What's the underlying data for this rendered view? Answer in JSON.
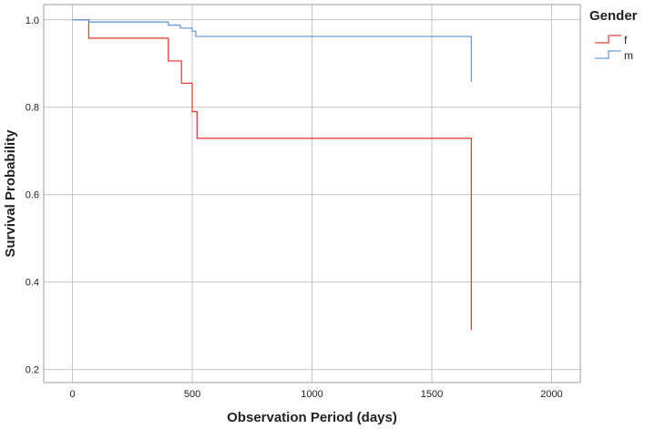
{
  "chart_data": {
    "type": "line",
    "title": "",
    "xlabel": "Observation Period (days)",
    "ylabel": "Survival Probability",
    "xlim": [
      -120,
      2120
    ],
    "ylim": [
      0.17,
      1.035
    ],
    "x_ticks": [
      0,
      500,
      1000,
      1500,
      2000
    ],
    "y_ticks": [
      0.2,
      0.4,
      0.6,
      0.8,
      1.0
    ],
    "x_tick_labels": [
      "0",
      "500",
      "1000",
      "1500",
      "2000"
    ],
    "y_tick_labels": [
      "0.2",
      "0.4",
      "0.6",
      "0.8",
      "1.0"
    ],
    "grid": true,
    "legend_position": "top-right",
    "legend_title": "Gender",
    "step": true,
    "series": [
      {
        "name": "f",
        "color": "#e8413c",
        "x": [
          0,
          68,
          400,
          455,
          500,
          520,
          1665,
          1665
        ],
        "y": [
          1.0,
          0.958,
          0.906,
          0.855,
          0.79,
          0.729,
          0.729,
          0.29
        ]
      },
      {
        "name": "m",
        "color": "#6a9ee0",
        "x": [
          0,
          70,
          400,
          450,
          500,
          515,
          1665,
          1665
        ],
        "y": [
          1.0,
          0.995,
          0.988,
          0.981,
          0.974,
          0.962,
          0.962,
          0.858
        ]
      }
    ]
  }
}
